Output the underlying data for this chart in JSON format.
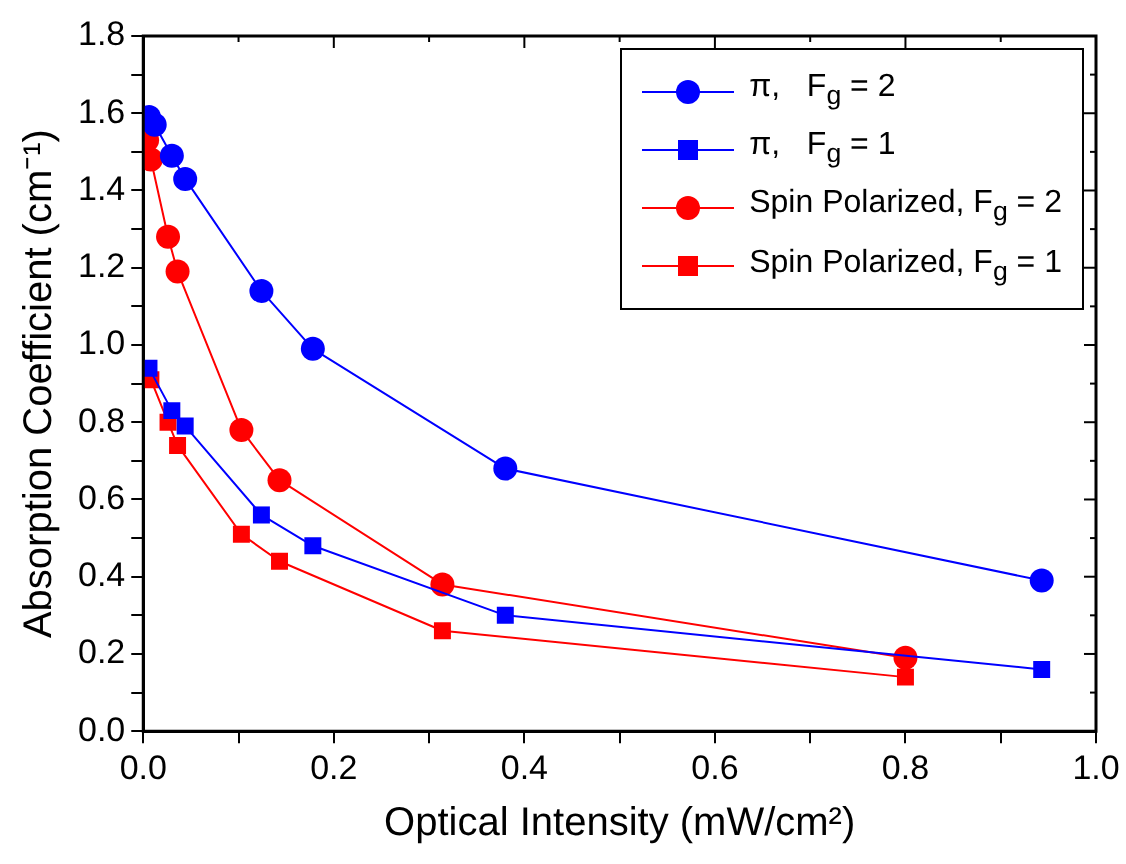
{
  "chart_data": {
    "type": "line",
    "xlabel": "Optical Intensity (mW/cm²)",
    "ylabel": "Absorption Coefficient (cm⁻¹)",
    "xlim": [
      0,
      1
    ],
    "ylim": [
      0,
      1.8
    ],
    "xticks": [
      {
        "value": 0,
        "label": "0.0"
      },
      {
        "value": 0.1,
        "label": null
      },
      {
        "value": 0.2,
        "label": "0.2"
      },
      {
        "value": 0.3,
        "label": null
      },
      {
        "value": 0.4,
        "label": "0.4"
      },
      {
        "value": 0.5,
        "label": null
      },
      {
        "value": 0.6,
        "label": "0.6"
      },
      {
        "value": 0.7,
        "label": null
      },
      {
        "value": 0.8,
        "label": "0.8"
      },
      {
        "value": 0.9,
        "label": null
      },
      {
        "value": 1,
        "label": "1.0"
      }
    ],
    "yticks": [
      {
        "value": 0,
        "label": "0.0"
      },
      {
        "value": 0.1,
        "label": null
      },
      {
        "value": 0.2,
        "label": "0.2"
      },
      {
        "value": 0.3,
        "label": null
      },
      {
        "value": 0.4,
        "label": "0.4"
      },
      {
        "value": 0.5,
        "label": null
      },
      {
        "value": 0.6,
        "label": "0.6"
      },
      {
        "value": 0.7,
        "label": null
      },
      {
        "value": 0.8,
        "label": "0.8"
      },
      {
        "value": 0.9,
        "label": null
      },
      {
        "value": 1,
        "label": "1.0"
      },
      {
        "value": 1.1,
        "label": null
      },
      {
        "value": 1.2,
        "label": "1.2"
      },
      {
        "value": 1.3,
        "label": null
      },
      {
        "value": 1.4,
        "label": "1.4"
      },
      {
        "value": 1.5,
        "label": null
      },
      {
        "value": 1.6,
        "label": "1.6"
      },
      {
        "value": 1.7,
        "label": null
      },
      {
        "value": 1.8,
        "label": "1.8"
      }
    ],
    "grid": false,
    "legend": "top right",
    "line_style": "solid",
    "series": [
      {
        "name": "π,   F$_{g}$ = 2",
        "color": "#0000ff",
        "marker": "circle",
        "x": [
          0.006,
          0.012,
          0.03,
          0.044,
          0.124,
          0.178,
          0.38,
          0.943
        ],
        "values": [
          1.59,
          1.57,
          1.49,
          1.43,
          1.14,
          0.99,
          0.68,
          0.39
        ]
      },
      {
        "name": "π,   F$_{g}$ = 1",
        "color": "#0000ff",
        "marker": "square",
        "x": [
          0.006,
          0.03,
          0.044,
          0.124,
          0.178,
          0.38,
          0.943
        ],
        "values": [
          0.94,
          0.83,
          0.79,
          0.56,
          0.48,
          0.3,
          0.16
        ]
      },
      {
        "name": "Spin Polarized, F$_{g}$ = 2",
        "color": "#ff0000",
        "marker": "circle",
        "x": [
          0.004,
          0.008,
          0.026,
          0.036,
          0.103,
          0.143,
          0.314,
          0.8
        ],
        "values": [
          1.53,
          1.48,
          1.28,
          1.19,
          0.78,
          0.65,
          0.38,
          0.19
        ]
      },
      {
        "name": "Spin Polarized, F$_{g}$ = 1",
        "color": "#ff0000",
        "marker": "square",
        "x": [
          0.008,
          0.026,
          0.036,
          0.103,
          0.143,
          0.314,
          0.8
        ],
        "values": [
          0.91,
          0.8,
          0.74,
          0.51,
          0.44,
          0.26,
          0.14
        ]
      }
    ]
  }
}
